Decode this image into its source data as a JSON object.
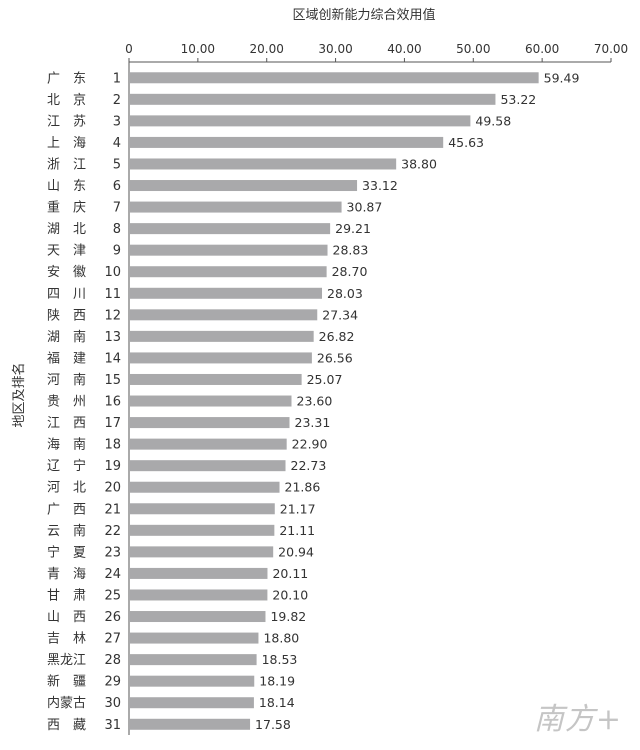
{
  "chart_data": {
    "type": "bar",
    "orientation": "horizontal",
    "title": "区域创新能力综合效用值",
    "ylabel": "地区及排名",
    "xlim": [
      0,
      70
    ],
    "xticks": [
      "0",
      "10.00",
      "20.00",
      "30.00",
      "40.00",
      "50.00",
      "60.00",
      "70.00"
    ],
    "xtick_values": [
      0,
      10,
      20,
      30,
      40,
      50,
      60,
      70
    ],
    "bar_color": "#a9a9ab",
    "grid": false,
    "categories": [
      {
        "region": "广　东",
        "rank": "1"
      },
      {
        "region": "北　京",
        "rank": "2"
      },
      {
        "region": "江　苏",
        "rank": "3"
      },
      {
        "region": "上　海",
        "rank": "4"
      },
      {
        "region": "浙　江",
        "rank": "5"
      },
      {
        "region": "山　东",
        "rank": "6"
      },
      {
        "region": "重　庆",
        "rank": "7"
      },
      {
        "region": "湖　北",
        "rank": "8"
      },
      {
        "region": "天　津",
        "rank": "9"
      },
      {
        "region": "安　徽",
        "rank": "10"
      },
      {
        "region": "四　川",
        "rank": "11"
      },
      {
        "region": "陕　西",
        "rank": "12"
      },
      {
        "region": "湖　南",
        "rank": "13"
      },
      {
        "region": "福　建",
        "rank": "14"
      },
      {
        "region": "河　南",
        "rank": "15"
      },
      {
        "region": "贵　州",
        "rank": "16"
      },
      {
        "region": "江　西",
        "rank": "17"
      },
      {
        "region": "海　南",
        "rank": "18"
      },
      {
        "region": "辽　宁",
        "rank": "19"
      },
      {
        "region": "河　北",
        "rank": "20"
      },
      {
        "region": "广　西",
        "rank": "21"
      },
      {
        "region": "云　南",
        "rank": "22"
      },
      {
        "region": "宁　夏",
        "rank": "23"
      },
      {
        "region": "青　海",
        "rank": "24"
      },
      {
        "region": "甘　肃",
        "rank": "25"
      },
      {
        "region": "山　西",
        "rank": "26"
      },
      {
        "region": "吉　林",
        "rank": "27"
      },
      {
        "region": "黑龙江",
        "rank": "28"
      },
      {
        "region": "新　疆",
        "rank": "29"
      },
      {
        "region": "内蒙古",
        "rank": "30"
      },
      {
        "region": "西　藏",
        "rank": "31"
      }
    ],
    "values": [
      59.49,
      53.22,
      49.58,
      45.63,
      38.8,
      33.12,
      30.87,
      29.21,
      28.83,
      28.7,
      28.03,
      27.34,
      26.82,
      26.56,
      25.07,
      23.6,
      23.31,
      22.9,
      22.73,
      21.86,
      21.17,
      21.11,
      20.94,
      20.11,
      20.1,
      19.82,
      18.8,
      18.53,
      18.19,
      18.14,
      17.58
    ],
    "value_labels": [
      "59.49",
      "53.22",
      "49.58",
      "45.63",
      "38.80",
      "33.12",
      "30.87",
      "29.21",
      "28.83",
      "28.70",
      "28.03",
      "27.34",
      "26.82",
      "26.56",
      "25.07",
      "23.60",
      "23.31",
      "22.90",
      "22.73",
      "21.86",
      "21.17",
      "21.11",
      "20.94",
      "20.11",
      "20.10",
      "19.82",
      "18.80",
      "18.53",
      "18.19",
      "18.14",
      "17.58"
    ]
  },
  "watermark": "南方+"
}
